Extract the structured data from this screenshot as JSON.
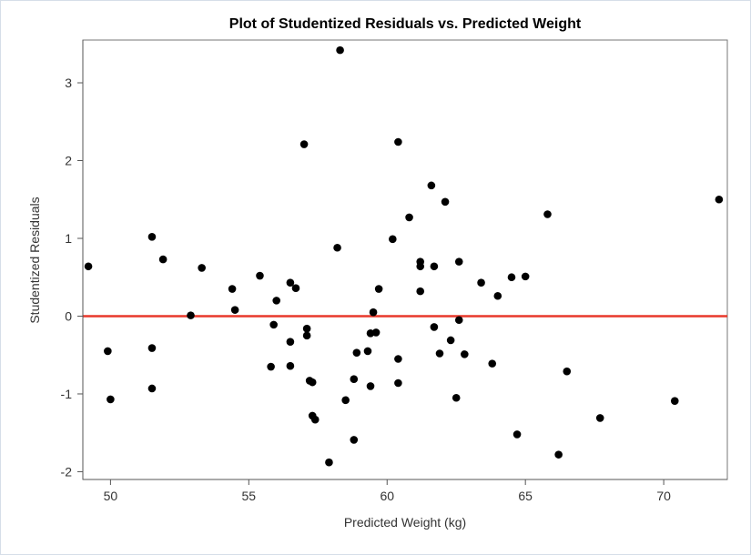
{
  "chart_data": {
    "type": "scatter",
    "title": "Plot of Studentized Residuals vs. Predicted Weight",
    "xlabel": "Predicted Weight (kg)",
    "ylabel": "Studentized Residuals",
    "xlim": [
      49,
      72.3
    ],
    "ylim": [
      -2.1,
      3.55
    ],
    "xticks": [
      50,
      55,
      60,
      65,
      70
    ],
    "yticks": [
      -2,
      -1,
      0,
      1,
      2,
      3
    ],
    "reference_line": {
      "y": 0,
      "color": "#e8392b"
    },
    "grid": false,
    "point_color": "#000000",
    "points": [
      {
        "x": 49.2,
        "y": 0.64
      },
      {
        "x": 49.9,
        "y": -0.45
      },
      {
        "x": 50.0,
        "y": -1.07
      },
      {
        "x": 51.5,
        "y": 1.02
      },
      {
        "x": 51.5,
        "y": -0.41
      },
      {
        "x": 51.5,
        "y": -0.93
      },
      {
        "x": 51.9,
        "y": 0.73
      },
      {
        "x": 52.9,
        "y": 0.01
      },
      {
        "x": 53.3,
        "y": 0.62
      },
      {
        "x": 54.4,
        "y": 0.35
      },
      {
        "x": 54.5,
        "y": 0.08
      },
      {
        "x": 55.4,
        "y": 0.52
      },
      {
        "x": 55.8,
        "y": -0.65
      },
      {
        "x": 55.9,
        "y": -0.11
      },
      {
        "x": 56.0,
        "y": 0.2
      },
      {
        "x": 56.5,
        "y": 0.43
      },
      {
        "x": 56.5,
        "y": -0.33
      },
      {
        "x": 56.5,
        "y": -0.64
      },
      {
        "x": 56.7,
        "y": 0.36
      },
      {
        "x": 57.0,
        "y": 2.21
      },
      {
        "x": 57.1,
        "y": -0.16
      },
      {
        "x": 57.1,
        "y": -0.25
      },
      {
        "x": 57.2,
        "y": -0.83
      },
      {
        "x": 57.3,
        "y": -0.85
      },
      {
        "x": 57.3,
        "y": -1.28
      },
      {
        "x": 57.4,
        "y": -1.33
      },
      {
        "x": 57.9,
        "y": -1.88
      },
      {
        "x": 58.2,
        "y": 0.88
      },
      {
        "x": 58.3,
        "y": 3.42
      },
      {
        "x": 58.5,
        "y": -1.08
      },
      {
        "x": 58.8,
        "y": -0.81
      },
      {
        "x": 58.8,
        "y": -1.59
      },
      {
        "x": 58.9,
        "y": -0.47
      },
      {
        "x": 59.3,
        "y": -0.45
      },
      {
        "x": 59.4,
        "y": -0.22
      },
      {
        "x": 59.4,
        "y": -0.9
      },
      {
        "x": 59.5,
        "y": 0.05
      },
      {
        "x": 59.6,
        "y": -0.21
      },
      {
        "x": 59.7,
        "y": 0.35
      },
      {
        "x": 60.2,
        "y": 0.99
      },
      {
        "x": 60.4,
        "y": 2.24
      },
      {
        "x": 60.4,
        "y": -0.55
      },
      {
        "x": 60.4,
        "y": -0.86
      },
      {
        "x": 60.8,
        "y": 1.27
      },
      {
        "x": 61.2,
        "y": 0.7
      },
      {
        "x": 61.2,
        "y": 0.64
      },
      {
        "x": 61.2,
        "y": 0.32
      },
      {
        "x": 61.6,
        "y": 1.68
      },
      {
        "x": 61.7,
        "y": 0.64
      },
      {
        "x": 61.7,
        "y": -0.14
      },
      {
        "x": 61.9,
        "y": -0.48
      },
      {
        "x": 62.1,
        "y": 1.47
      },
      {
        "x": 62.3,
        "y": -0.31
      },
      {
        "x": 62.5,
        "y": -1.05
      },
      {
        "x": 62.6,
        "y": 0.7
      },
      {
        "x": 62.6,
        "y": -0.05
      },
      {
        "x": 62.8,
        "y": -0.49
      },
      {
        "x": 63.4,
        "y": 0.43
      },
      {
        "x": 63.8,
        "y": -0.61
      },
      {
        "x": 64.0,
        "y": 0.26
      },
      {
        "x": 64.5,
        "y": 0.5
      },
      {
        "x": 64.7,
        "y": -1.52
      },
      {
        "x": 65.0,
        "y": 0.51
      },
      {
        "x": 65.8,
        "y": 1.31
      },
      {
        "x": 66.2,
        "y": -1.78
      },
      {
        "x": 66.5,
        "y": -0.71
      },
      {
        "x": 67.7,
        "y": -1.31
      },
      {
        "x": 70.4,
        "y": -1.09
      },
      {
        "x": 72.0,
        "y": 1.5
      }
    ]
  }
}
